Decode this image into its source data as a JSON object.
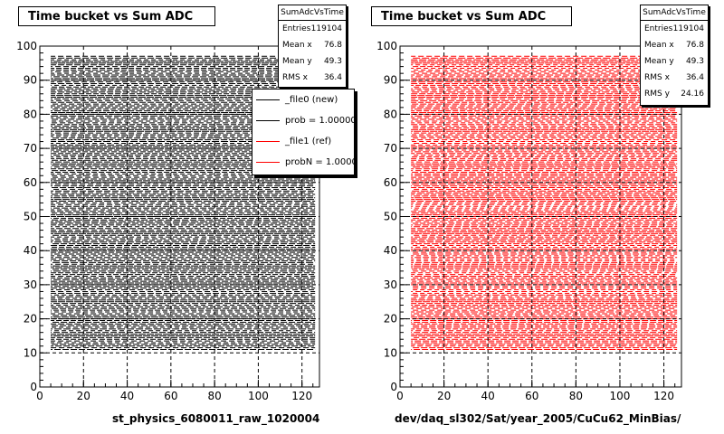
{
  "chart_data": [
    {
      "type": "scatter",
      "title": "Time bucket vs Sum ADC",
      "xlabel": "st_physics_6080011_raw_1020004",
      "xlim": [
        0,
        128
      ],
      "ylim": [
        0,
        100
      ],
      "x_ticks": [
        0,
        20,
        40,
        60,
        80,
        100,
        120
      ],
      "y_ticks": [
        0,
        10,
        20,
        30,
        40,
        50,
        60,
        70,
        80,
        90,
        100
      ],
      "grid": true,
      "stats": {
        "title": "SumAdcVsTime",
        "rows": [
          {
            "label": "Entries",
            "value": "119104"
          },
          {
            "label": "Mean x",
            "value": "76.8"
          },
          {
            "label": "Mean y",
            "value": "49.3"
          },
          {
            "label": "RMS x",
            "value": "36.4"
          }
        ]
      },
      "legend": {
        "placement": "top-right",
        "entries": [
          {
            "label": "_file0 (new)",
            "color": "#000000"
          },
          {
            "label": "prob = 1.000000",
            "color": "#000000"
          },
          {
            "label": "_file1 (ref)",
            "color": "#ff0000"
          },
          {
            "label": "probN = 1.000000",
            "color": "#ff0000"
          }
        ]
      },
      "marker_color": "#000000"
    },
    {
      "type": "scatter",
      "title": "Time bucket vs Sum ADC",
      "xlabel": "dev/daq_sl302/Sat/year_2005/CuCu62_MinBias/",
      "xlim": [
        0,
        128
      ],
      "ylim": [
        0,
        100
      ],
      "x_ticks": [
        0,
        20,
        40,
        60,
        80,
        100,
        120
      ],
      "y_ticks": [
        0,
        10,
        20,
        30,
        40,
        50,
        60,
        70,
        80,
        90,
        100
      ],
      "grid": true,
      "stats": {
        "title": "SumAdcVsTime",
        "rows": [
          {
            "label": "Entries",
            "value": "119104"
          },
          {
            "label": "Mean x",
            "value": "76.8"
          },
          {
            "label": "Mean y",
            "value": "49.3"
          },
          {
            "label": "RMS x",
            "value": "36.4"
          },
          {
            "label": "RMS y",
            "value": "24.16"
          }
        ]
      },
      "marker_color": "#ff0000"
    }
  ]
}
